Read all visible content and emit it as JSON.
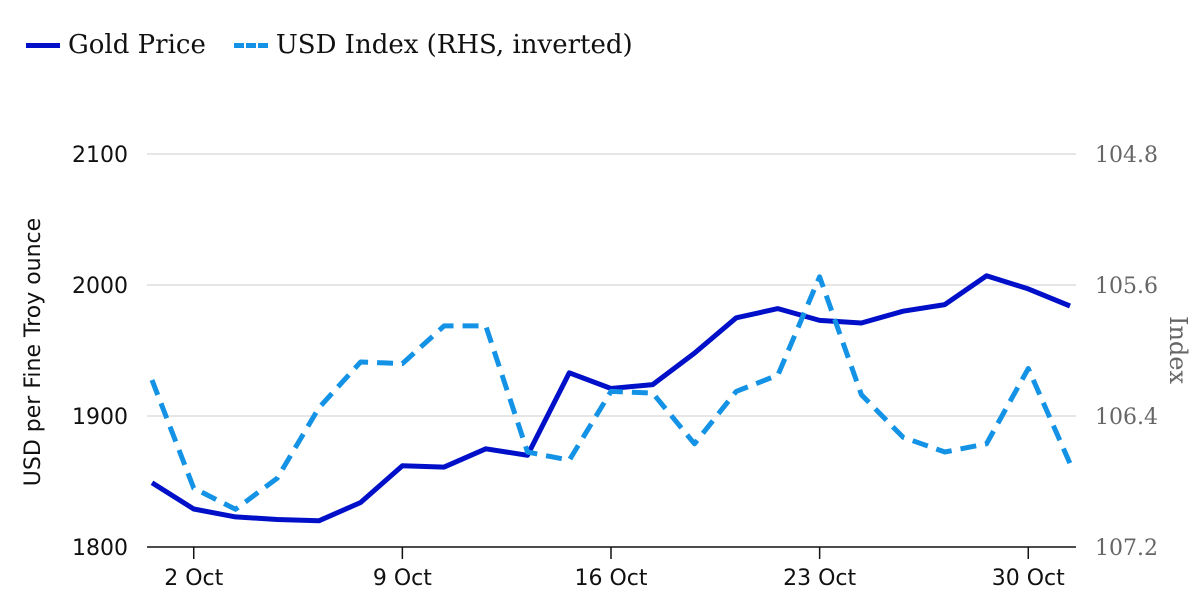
{
  "chart_data": {
    "type": "line",
    "x_dates": [
      "2023-09-29",
      "2023-10-02",
      "2023-10-03",
      "2023-10-04",
      "2023-10-05",
      "2023-10-06",
      "2023-10-09",
      "2023-10-10",
      "2023-10-11",
      "2023-10-12",
      "2023-10-13",
      "2023-10-16",
      "2023-10-17",
      "2023-10-18",
      "2023-10-19",
      "2023-10-20",
      "2023-10-23",
      "2023-10-24",
      "2023-10-25",
      "2023-10-26",
      "2023-10-27",
      "2023-10-30",
      "2023-10-31"
    ],
    "xticks": [
      {
        "date": "2023-10-02",
        "label": "2 Oct"
      },
      {
        "date": "2023-10-09",
        "label": "9 Oct"
      },
      {
        "date": "2023-10-16",
        "label": "16 Oct"
      },
      {
        "date": "2023-10-23",
        "label": "23 Oct"
      },
      {
        "date": "2023-10-30",
        "label": "30 Oct"
      }
    ],
    "y_left": {
      "label": "USD per Fine Troy ounce",
      "min": 1800,
      "max": 2100,
      "ticks": [
        "1800",
        "1900",
        "2000",
        "2100"
      ]
    },
    "y_right": {
      "label": "Index",
      "min": 104.8,
      "max": 107.2,
      "inverted": true,
      "ticks": [
        "107.2",
        "106.4",
        "105.6",
        "104.8"
      ]
    },
    "grid": true,
    "legend_position": "top-left",
    "series": [
      {
        "name": "Gold Price",
        "axis": "left",
        "style": "solid",
        "color": "#0010c8",
        "points": [
          [
            "2023-09-29",
            1849
          ],
          [
            "2023-10-02",
            1829
          ],
          [
            "2023-10-03",
            1823
          ],
          [
            "2023-10-04",
            1821
          ],
          [
            "2023-10-05",
            1820
          ],
          [
            "2023-10-06",
            1834
          ],
          [
            "2023-10-09",
            1862
          ],
          [
            "2023-10-10",
            1861
          ],
          [
            "2023-10-11",
            1875
          ],
          [
            "2023-10-12",
            1870
          ],
          [
            "2023-10-13",
            1933
          ],
          [
            "2023-10-16",
            1921
          ],
          [
            "2023-10-17",
            1924
          ],
          [
            "2023-10-18",
            1948
          ],
          [
            "2023-10-19",
            1975
          ],
          [
            "2023-10-20",
            1982
          ],
          [
            "2023-10-23",
            1973
          ],
          [
            "2023-10-24",
            1971
          ],
          [
            "2023-10-25",
            1980
          ],
          [
            "2023-10-26",
            1985
          ],
          [
            "2023-10-27",
            2007
          ],
          [
            "2023-10-30",
            1997
          ],
          [
            "2023-10-31",
            1984
          ]
        ]
      },
      {
        "name": "USD Index (RHS, inverted)",
        "axis": "right",
        "style": "dashed",
        "color": "#1493e6",
        "points": [
          [
            "2023-09-29",
            106.18
          ],
          [
            "2023-10-02",
            106.84
          ],
          [
            "2023-10-03",
            106.97
          ],
          [
            "2023-10-04",
            106.78
          ],
          [
            "2023-10-05",
            106.35
          ],
          [
            "2023-10-06",
            106.07
          ],
          [
            "2023-10-09",
            106.08
          ],
          [
            "2023-10-10",
            105.85
          ],
          [
            "2023-10-11",
            105.85
          ],
          [
            "2023-10-12",
            106.62
          ],
          [
            "2023-10-13",
            106.67
          ],
          [
            "2023-10-16",
            106.25
          ],
          [
            "2023-10-17",
            106.26
          ],
          [
            "2023-10-18",
            106.57
          ],
          [
            "2023-10-19",
            106.25
          ],
          [
            "2023-10-20",
            106.15
          ],
          [
            "2023-10-23",
            105.55
          ],
          [
            "2023-10-24",
            106.27
          ],
          [
            "2023-10-25",
            106.53
          ],
          [
            "2023-10-26",
            106.62
          ],
          [
            "2023-10-27",
            106.57
          ],
          [
            "2023-10-30",
            106.11
          ],
          [
            "2023-10-31",
            106.69
          ]
        ]
      }
    ]
  }
}
